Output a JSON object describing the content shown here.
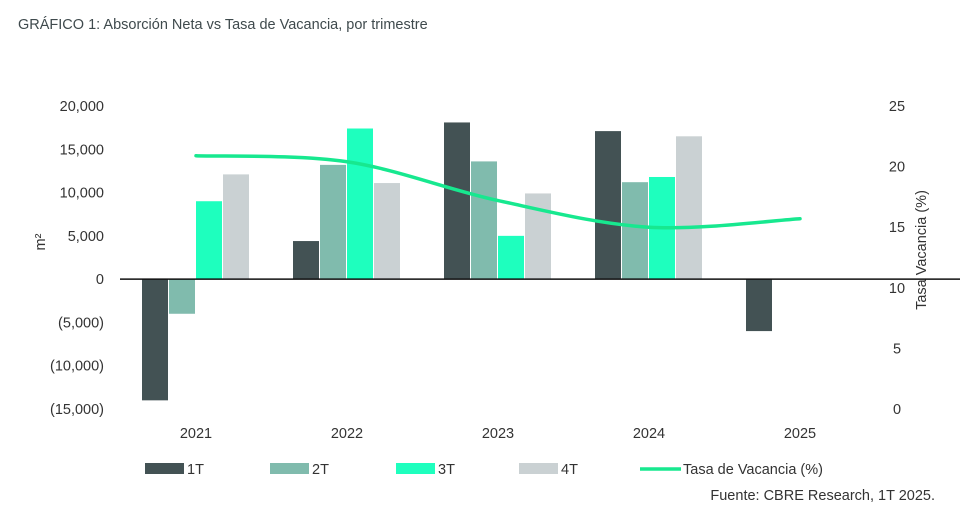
{
  "chart_data": {
    "type": "bar",
    "title": "GRÁFICO 1: Absorción Neta vs Tasa de Vacancia, por trimestre",
    "source": "Fuente: CBRE Research, 1T 2025.",
    "categories": [
      "2021",
      "2022",
      "2023",
      "2024",
      "2025"
    ],
    "ylabel": "m²",
    "ylim": [
      -15000,
      20000
    ],
    "yticks": [
      20000,
      15000,
      10000,
      5000,
      0,
      -5000,
      -10000,
      -15000
    ],
    "ytick_labels": [
      "20,000",
      "15,000",
      "10,000",
      "5,000",
      "0",
      "(5,000)",
      "(10,000)",
      "(15,000)"
    ],
    "y2label": "Tasa Vacancia (%)",
    "y2lim": [
      0,
      25
    ],
    "y2ticks": [
      "25",
      "20",
      "15",
      "10",
      "5",
      "0"
    ],
    "series": [
      {
        "name": "1T",
        "type": "bar",
        "color": "#435254",
        "values": [
          -14000,
          4400,
          18100,
          17100,
          -6000
        ]
      },
      {
        "name": "2T",
        "type": "bar",
        "color": "#80bbad",
        "values": [
          -4000,
          13200,
          13600,
          11200,
          null
        ]
      },
      {
        "name": "3T",
        "type": "bar",
        "color": "#1effbe",
        "values": [
          9000,
          17400,
          5000,
          11800,
          null
        ]
      },
      {
        "name": "4T",
        "type": "bar",
        "color": "#cad1d3",
        "values": [
          12100,
          11100,
          9900,
          16500,
          null
        ]
      },
      {
        "name": "Tasa de Vacancia (%)",
        "type": "line",
        "axis": "right",
        "color": "#17e88f",
        "values": [
          20.9,
          20.4,
          17.2,
          15.0,
          15.7
        ]
      }
    ],
    "legend_position": "bottom",
    "grid": false
  }
}
